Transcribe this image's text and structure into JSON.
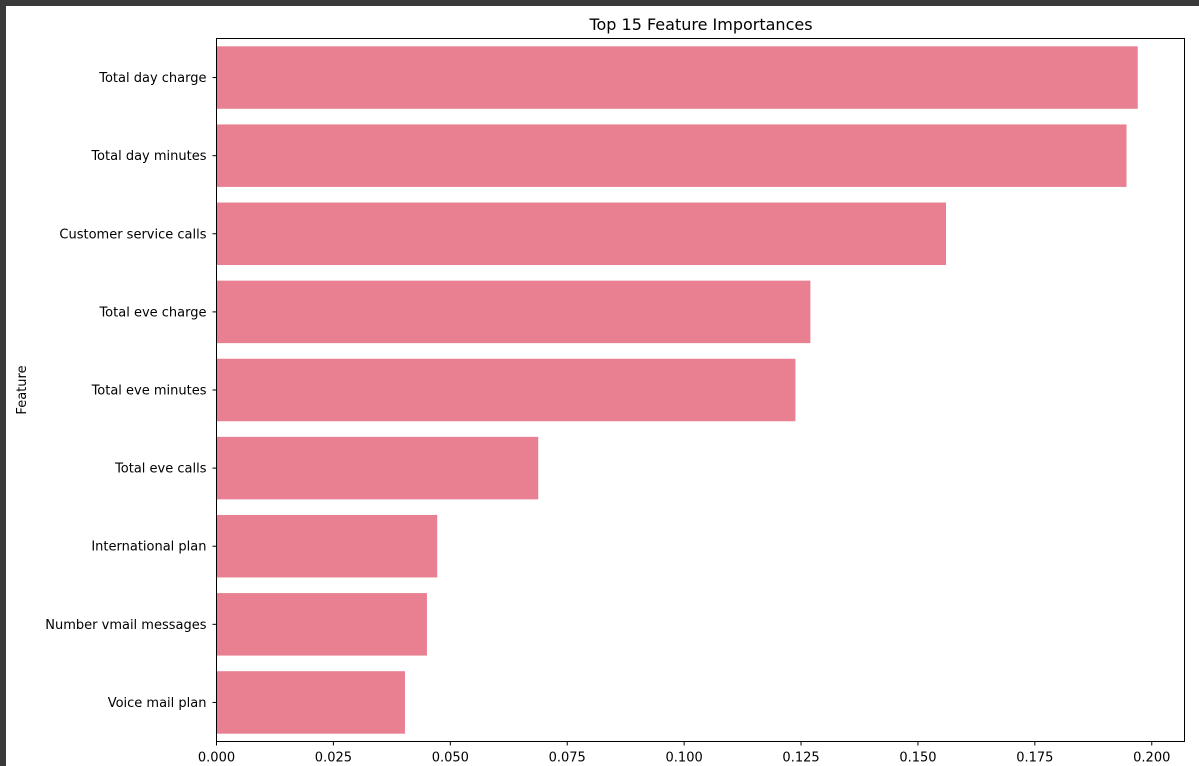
{
  "chart_data": {
    "type": "bar",
    "orientation": "horizontal",
    "title": "Top 15 Feature Importances",
    "ylabel": "Feature",
    "xlabel": "",
    "categories": [
      "Total day charge",
      "Total day minutes",
      "Customer service calls",
      "Total eve charge",
      "Total eve minutes",
      "Total eve calls",
      "International plan",
      "Number vmail messages",
      "Voice mail plan"
    ],
    "values": [
      0.197,
      0.1946,
      0.156,
      0.127,
      0.1238,
      0.0688,
      0.0472,
      0.045,
      0.0403
    ],
    "xlim": [
      0,
      0.207
    ],
    "xticks": [
      0.0,
      0.025,
      0.05,
      0.075,
      0.1,
      0.125,
      0.15,
      0.175,
      0.2
    ],
    "xtick_labels": [
      "0.000",
      "0.025",
      "0.050",
      "0.075",
      "0.100",
      "0.125",
      "0.150",
      "0.175",
      "0.200"
    ],
    "bar_color": "#e88091",
    "grid": false
  }
}
